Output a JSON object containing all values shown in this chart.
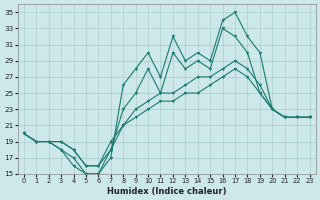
{
  "xlabel": "Humidex (Indice chaleur)",
  "bg_color": "#cce8ea",
  "grid_color": "#aacccc",
  "line_color": "#1a7a6e",
  "xlim": [
    -0.5,
    23.5
  ],
  "ylim": [
    15,
    36
  ],
  "yticks": [
    15,
    17,
    19,
    21,
    23,
    25,
    27,
    29,
    31,
    33,
    35
  ],
  "xticks": [
    0,
    1,
    2,
    3,
    4,
    5,
    6,
    7,
    8,
    9,
    10,
    11,
    12,
    13,
    14,
    15,
    16,
    17,
    18,
    19,
    20,
    21,
    22,
    23
  ],
  "line1_y": [
    20,
    19,
    19,
    18,
    16,
    15,
    15,
    17,
    26,
    28,
    30,
    27,
    32,
    29,
    30,
    29,
    34,
    35,
    32,
    30,
    23,
    22,
    22,
    22
  ],
  "line2_y": [
    20,
    19,
    19,
    18,
    17,
    15,
    15,
    18,
    23,
    25,
    28,
    25,
    30,
    28,
    29,
    28,
    33,
    32,
    30,
    25,
    23,
    22,
    22,
    22
  ],
  "line3_y": [
    20,
    19,
    19,
    19,
    18,
    16,
    16,
    19,
    21,
    23,
    24,
    25,
    25,
    26,
    27,
    27,
    28,
    29,
    28,
    26,
    23,
    22,
    22,
    22
  ],
  "line4_y": [
    20,
    19,
    19,
    19,
    18,
    16,
    16,
    18,
    21,
    22,
    23,
    24,
    24,
    25,
    25,
    26,
    27,
    28,
    27,
    25,
    23,
    22,
    22,
    22
  ]
}
